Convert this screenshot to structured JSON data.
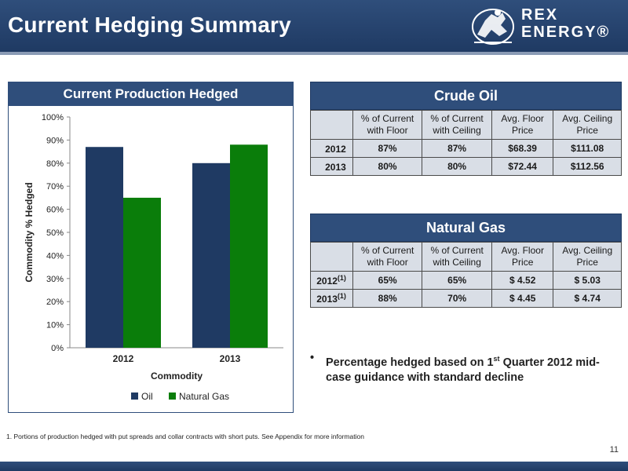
{
  "header": {
    "title": "Current Hedging Summary",
    "logo_line1": "REX",
    "logo_line2": "ENERGY®"
  },
  "colors": {
    "brand_navy": "#2f4e7b",
    "oil": "#1f3a63",
    "natural_gas": "#0a7d0a"
  },
  "chart_panel_title": "Current Production Hedged",
  "chart_data": {
    "type": "bar",
    "categories": [
      "2012",
      "2013"
    ],
    "series": [
      {
        "name": "Oil",
        "values": [
          87,
          80
        ],
        "color": "#1f3a63"
      },
      {
        "name": "Natural Gas",
        "values": [
          65,
          88
        ],
        "color": "#0a7d0a"
      }
    ],
    "xlabel": "Commodity",
    "ylabel": "Commodity % Hedged",
    "ylim": [
      0,
      100
    ],
    "yticks": [
      "0%",
      "10%",
      "20%",
      "30%",
      "40%",
      "50%",
      "60%",
      "70%",
      "80%",
      "90%",
      "100%"
    ],
    "legend_position": "bottom",
    "grid": false
  },
  "crude_table": {
    "title": "Crude Oil",
    "headers": [
      "",
      "% of Current with Floor",
      "% of Current with Ceiling",
      "Avg. Floor Price",
      "Avg. Ceiling Price"
    ],
    "rows": [
      {
        "year": "2012",
        "sup": "",
        "floor_pct": "87%",
        "ceiling_pct": "87%",
        "floor_price": "$68.39",
        "ceiling_price": "$111.08"
      },
      {
        "year": "2013",
        "sup": "",
        "floor_pct": "80%",
        "ceiling_pct": "80%",
        "floor_price": "$72.44",
        "ceiling_price": "$112.56"
      }
    ]
  },
  "gas_table": {
    "title": "Natural Gas",
    "headers": [
      "",
      "% of Current with Floor",
      "% of Current with Ceiling",
      "Avg. Floor Price",
      "Avg. Ceiling Price"
    ],
    "rows": [
      {
        "year": "2012",
        "sup": "(1)",
        "floor_pct": "65%",
        "ceiling_pct": "65%",
        "floor_price": "$ 4.52",
        "ceiling_price": "$ 5.03"
      },
      {
        "year": "2013",
        "sup": "(1)",
        "floor_pct": "88%",
        "ceiling_pct": "70%",
        "floor_price": "$ 4.45",
        "ceiling_price": "$ 4.74"
      }
    ]
  },
  "bullet": {
    "dot": "•",
    "text_before": "Percentage hedged based on 1",
    "sup": "st",
    "text_after": " Quarter 2012 mid-case guidance with standard decline"
  },
  "footnote": "1. Portions of production hedged with put spreads and collar contracts with short puts.  See Appendix for more information",
  "page_number": "11"
}
